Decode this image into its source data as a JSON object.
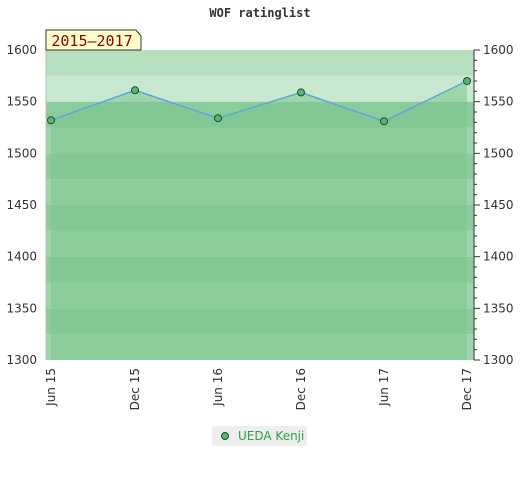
{
  "chart_data": {
    "type": "area",
    "title": "WOF ratinglist",
    "badge": "2015–2017",
    "x": [
      "Jun 15",
      "Dec 15",
      "Jun 16",
      "Dec 16",
      "Jun 17",
      "Dec 17"
    ],
    "series": [
      {
        "name": "UEDA Kenji",
        "values": [
          1532,
          1561,
          1534,
          1559,
          1531,
          1570
        ]
      }
    ],
    "ylim": [
      1300,
      1600
    ],
    "yticks": [
      1300,
      1350,
      1400,
      1450,
      1500,
      1550,
      1600
    ],
    "y_right_axis": true,
    "grid": true,
    "legend": "bottom-center",
    "colors": {
      "line": "#5aa8d8",
      "marker_fill": "#56b870",
      "marker_stroke": "#1f4d2c",
      "area": "#7cc58e",
      "band_dark": "#8ccc9c",
      "band_light": "#9fd5ac",
      "band_top_a": "#b6dfc0",
      "band_top_b": "#c8e8cf",
      "badge_bg": "#ffffcc"
    }
  }
}
